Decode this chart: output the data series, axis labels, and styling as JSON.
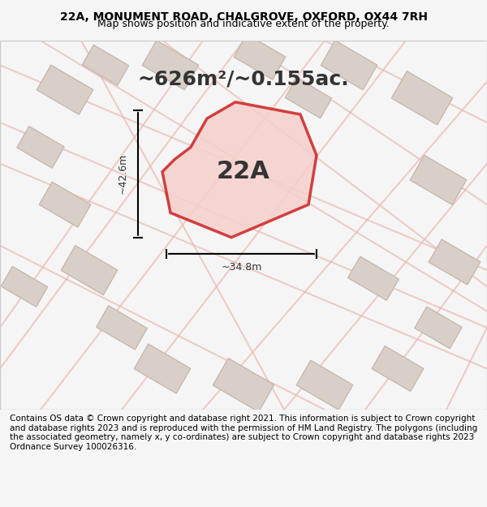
{
  "title_line1": "22A, MONUMENT ROAD, CHALGROVE, OXFORD, OX44 7RH",
  "title_line2": "Map shows position and indicative extent of the property.",
  "area_text": "~626m²/~0.155ac.",
  "label_22A": "22A",
  "dim_height": "~42.6m",
  "dim_width": "~34.8m",
  "footer_text": "Contains OS data © Crown copyright and database right 2021. This information is subject to Crown copyright and database rights 2023 and is reproduced with the permission of HM Land Registry. The polygons (including the associated geometry, namely x, y co-ordinates) are subject to Crown copyright and database rights 2023 Ordnance Survey 100026316.",
  "bg_color": "#f0ece8",
  "map_bg": "#e8e0d8",
  "plot_color_fill": "#f5d0cc",
  "plot_color_edge": "#cc2222",
  "road_color": "#e8b0a8",
  "building_fill": "#d8d0c8",
  "building_edge": "#c8b8b0",
  "title_fontsize": 10,
  "subtitle_fontsize": 9,
  "area_fontsize": 18,
  "label_fontsize": 22,
  "dim_fontsize": 9,
  "footer_fontsize": 7.5
}
